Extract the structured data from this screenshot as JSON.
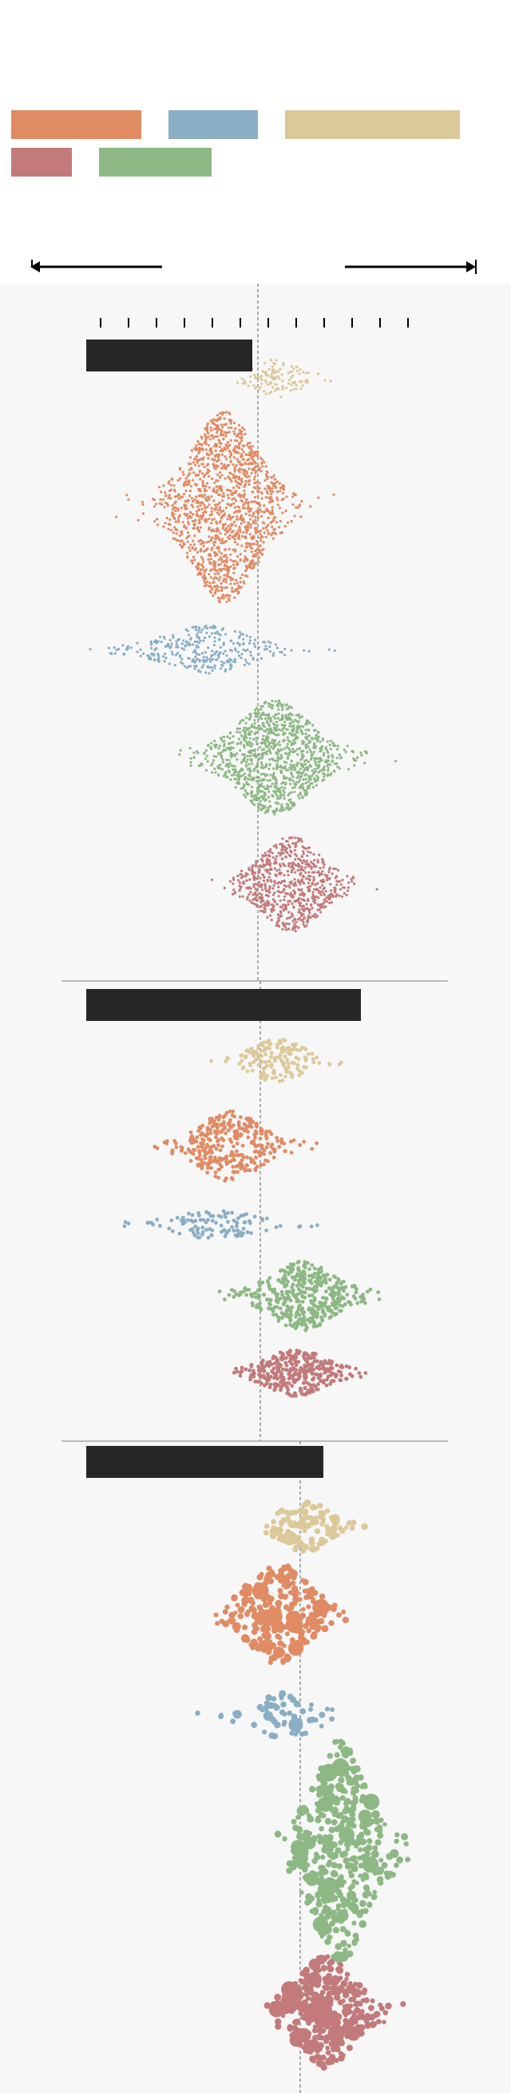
{
  "colors": {
    "orange": "#e08b64",
    "blue": "#8aaec4",
    "tan": "#dcc99a",
    "red": "#c27a7a",
    "green": "#8db884",
    "bar": "#262626",
    "axis": "#000000",
    "ref_line": "#777777",
    "divider": "#999999"
  },
  "legend": {
    "items": [
      {
        "color": "orange",
        "label": ""
      },
      {
        "color": "blue",
        "label": ""
      },
      {
        "color": "tan",
        "label": ""
      },
      {
        "color": "red",
        "label": ""
      },
      {
        "color": "green",
        "label": ""
      }
    ]
  },
  "axis": {
    "left_arrow_label": "",
    "right_arrow_label": "",
    "ticks": [
      "",
      "",
      "",
      "",
      "",
      "",
      "",
      "",
      "",
      "",
      "",
      ""
    ]
  },
  "chart_data": [
    {
      "type": "scatter",
      "subtype": "beeswarm",
      "title": "",
      "reference_value": 0.0,
      "xlim": [
        -6,
        6
      ],
      "series": [
        {
          "color": "tan",
          "center": 0.7,
          "spread": 1.4,
          "count": 120,
          "size": "small"
        },
        {
          "color": "orange",
          "center": -1.2,
          "spread": 2.0,
          "count": 1400,
          "size": "small"
        },
        {
          "color": "blue",
          "center": -1.8,
          "spread": 2.6,
          "count": 320,
          "size": "small"
        },
        {
          "color": "green",
          "center": 0.6,
          "spread": 2.2,
          "count": 1100,
          "size": "small"
        },
        {
          "color": "red",
          "center": 1.2,
          "spread": 1.8,
          "count": 700,
          "size": "small"
        }
      ]
    },
    {
      "type": "scatter",
      "subtype": "beeswarm",
      "title": "",
      "reference_value": 0.0,
      "xlim": [
        -6,
        6
      ],
      "series": [
        {
          "color": "tan",
          "center": 0.6,
          "spread": 1.6,
          "count": 160,
          "size": "small"
        },
        {
          "color": "orange",
          "center": -1.1,
          "spread": 1.9,
          "count": 330,
          "size": "medium"
        },
        {
          "color": "blue",
          "center": -1.6,
          "spread": 2.6,
          "count": 110,
          "size": "medium"
        },
        {
          "color": "green",
          "center": 1.5,
          "spread": 1.9,
          "count": 450,
          "size": "medium"
        },
        {
          "color": "red",
          "center": 1.3,
          "spread": 1.8,
          "count": 330,
          "size": "medium"
        }
      ]
    },
    {
      "type": "scatter",
      "subtype": "beeswarm",
      "title": "",
      "reference_value": 0.0,
      "xlim": [
        -6,
        6
      ],
      "series": [
        {
          "color": "tan",
          "center": 0.2,
          "spread": 1.4,
          "count": 110,
          "size": "varied"
        },
        {
          "color": "orange",
          "center": -0.8,
          "spread": 1.8,
          "count": 240,
          "size": "varied"
        },
        {
          "color": "blue",
          "center": -0.6,
          "spread": 1.8,
          "count": 60,
          "size": "varied"
        },
        {
          "color": "green",
          "center": 1.4,
          "spread": 1.6,
          "count": 460,
          "size": "varied"
        },
        {
          "color": "red",
          "center": 0.9,
          "spread": 1.7,
          "count": 380,
          "size": "varied"
        }
      ]
    }
  ]
}
